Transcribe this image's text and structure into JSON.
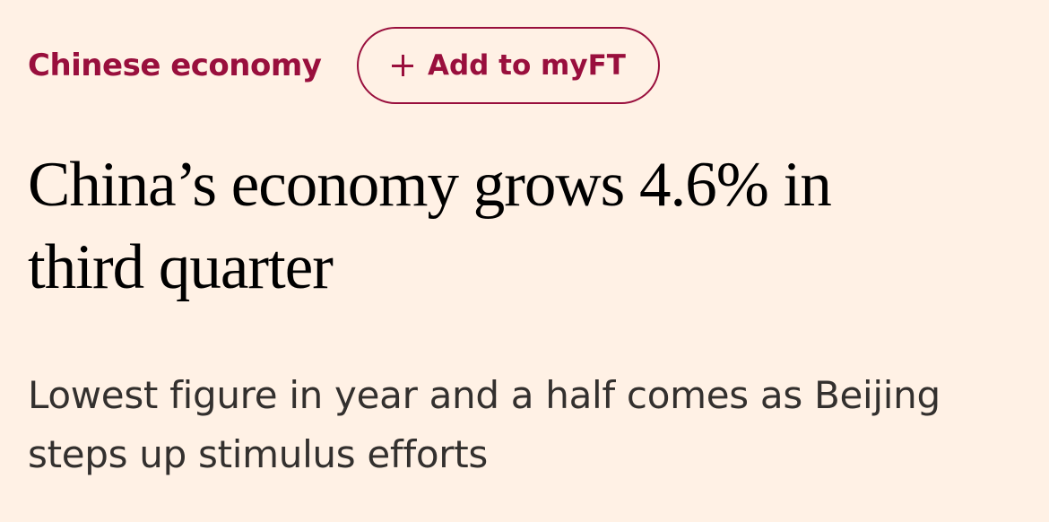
{
  "topic": {
    "label": "Chinese economy"
  },
  "myft_button": {
    "label": "Add to myFT",
    "icon": "plus-icon"
  },
  "article": {
    "headline": "China’s economy grows 4.6% in third quarter",
    "standfirst": "Lowest figure in year and a half comes as Beijing steps up stimulus efforts"
  },
  "colors": {
    "background": "#fff1e5",
    "accent": "#990f3d",
    "headline_text": "#000000",
    "standfirst_text": "#33302e"
  }
}
